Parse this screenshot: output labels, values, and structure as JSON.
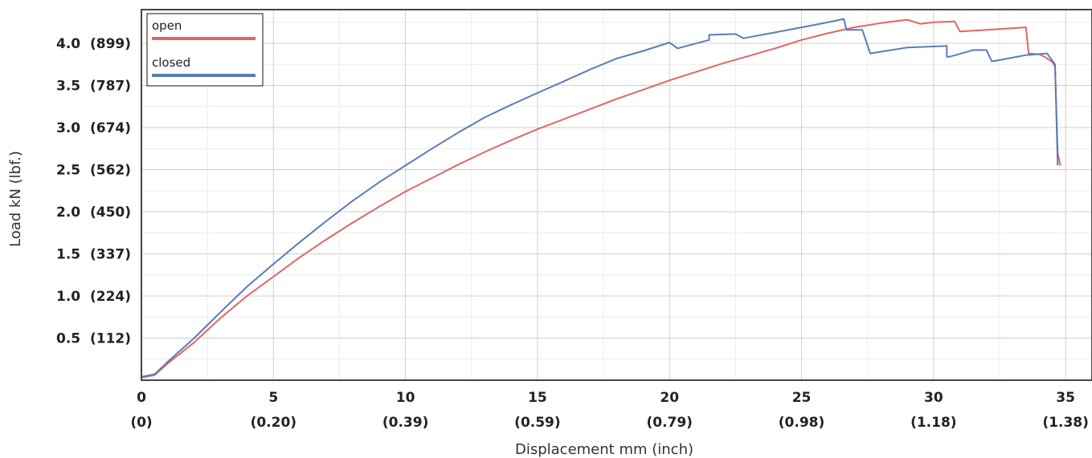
{
  "chart_data": {
    "type": "line",
    "title": "",
    "xlabel": "Displacement mm (inch)",
    "ylabel": "Load kN (lbf.)",
    "xlim": [
      0,
      36
    ],
    "ylim": [
      0,
      4.4
    ],
    "grid": true,
    "legend_position": "top-left",
    "x_ticks": [
      {
        "value": 0,
        "label": "0",
        "sublabel": "(0)"
      },
      {
        "value": 5,
        "label": "5",
        "sublabel": "(0.20)"
      },
      {
        "value": 10,
        "label": "10",
        "sublabel": "(0.39)"
      },
      {
        "value": 15,
        "label": "15",
        "sublabel": "(0.59)"
      },
      {
        "value": 20,
        "label": "20",
        "sublabel": "(0.79)"
      },
      {
        "value": 25,
        "label": "25",
        "sublabel": "(0.98)"
      },
      {
        "value": 30,
        "label": "30",
        "sublabel": "(1.18)"
      },
      {
        "value": 35,
        "label": "35",
        "sublabel": "(1.38)"
      }
    ],
    "y_ticks": [
      {
        "value": 0.5,
        "label": "0.5  (112)"
      },
      {
        "value": 1.0,
        "label": "1.0  (224)"
      },
      {
        "value": 1.5,
        "label": "1.5  (337)"
      },
      {
        "value": 2.0,
        "label": "2.0  (450)"
      },
      {
        "value": 2.5,
        "label": "2.5  (562)"
      },
      {
        "value": 3.0,
        "label": "3.0  (674)"
      },
      {
        "value": 3.5,
        "label": "3.5  (787)"
      },
      {
        "value": 4.0,
        "label": "4.0  (899)"
      }
    ],
    "series": [
      {
        "name": "open",
        "color": "#e06666",
        "x": [
          0,
          0.5,
          1,
          2,
          3,
          4,
          5,
          6,
          7,
          8,
          9,
          10,
          11,
          12,
          13,
          14,
          15,
          16,
          17,
          18,
          19,
          20,
          21,
          22,
          23,
          24,
          25,
          26,
          27,
          28,
          29,
          29.5,
          30,
          30.8,
          31,
          32,
          33,
          33.5,
          33.6,
          34,
          34.2,
          34.5,
          34.6,
          34.7,
          34.8
        ],
        "y": [
          0.03,
          0.06,
          0.2,
          0.45,
          0.74,
          1.0,
          1.23,
          1.46,
          1.67,
          1.87,
          2.06,
          2.24,
          2.4,
          2.56,
          2.71,
          2.85,
          2.98,
          3.1,
          3.22,
          3.34,
          3.45,
          3.56,
          3.66,
          3.76,
          3.85,
          3.94,
          4.04,
          4.12,
          4.19,
          4.24,
          4.28,
          4.23,
          4.25,
          4.26,
          4.14,
          4.16,
          4.18,
          4.19,
          3.88,
          3.87,
          3.84,
          3.78,
          3.72,
          2.7,
          2.55
        ]
      },
      {
        "name": "closed",
        "color": "#5b7bba",
        "x": [
          0,
          0.5,
          1,
          2,
          3,
          4,
          5,
          6,
          7,
          8,
          9,
          10,
          11,
          12,
          13,
          14,
          15,
          16,
          17,
          18,
          19,
          20,
          20.3,
          21.5,
          21.5,
          22.5,
          22.8,
          24,
          25,
          26,
          26.6,
          26.7,
          27.3,
          27.6,
          29,
          30.5,
          30.5,
          30.6,
          31.5,
          32,
          32.2,
          32.3,
          33.5,
          34.3,
          34.6,
          34.7
        ],
        "y": [
          0.04,
          0.07,
          0.22,
          0.5,
          0.81,
          1.11,
          1.38,
          1.64,
          1.89,
          2.13,
          2.35,
          2.55,
          2.75,
          2.94,
          3.12,
          3.27,
          3.41,
          3.55,
          3.69,
          3.82,
          3.91,
          4.01,
          3.94,
          4.04,
          4.1,
          4.11,
          4.06,
          4.13,
          4.19,
          4.25,
          4.29,
          4.16,
          4.16,
          3.88,
          3.95,
          3.97,
          3.84,
          3.84,
          3.92,
          3.92,
          3.79,
          3.79,
          3.86,
          3.88,
          3.75,
          2.55
        ]
      }
    ]
  }
}
